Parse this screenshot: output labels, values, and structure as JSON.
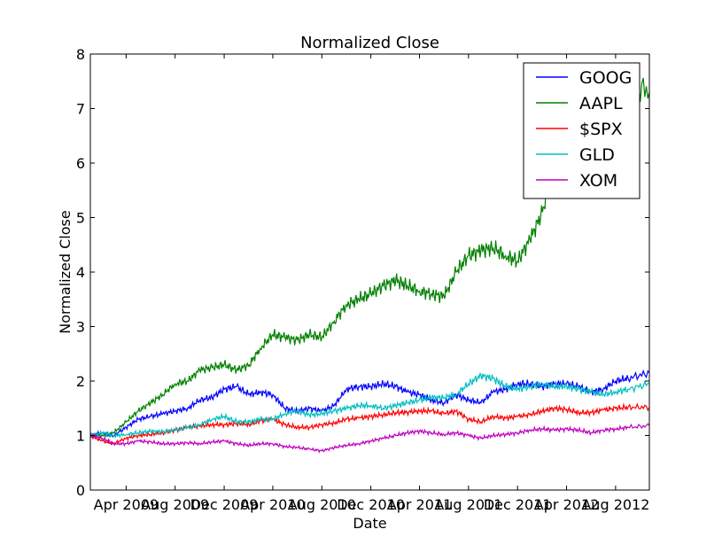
{
  "chart_data": {
    "type": "line",
    "title": "Normalized Close",
    "xlabel": "Date",
    "ylabel": "Normalized Close",
    "xlim": [
      "2009-01-02",
      "2012-10-24"
    ],
    "ylim": [
      0,
      8
    ],
    "x_ticks": [
      "2009-04-01",
      "2009-08-01",
      "2009-12-01",
      "2010-04-01",
      "2010-08-01",
      "2010-12-01",
      "2011-04-01",
      "2011-08-01",
      "2011-12-01",
      "2012-04-01",
      "2012-08-01"
    ],
    "x_tick_labels": [
      "Apr 2009",
      "Aug 2009",
      "Dec 2009",
      "Apr 2010",
      "Aug 2010",
      "Dec 2010",
      "Apr 2011",
      "Aug 2011",
      "Dec 2011",
      "Apr 2012",
      "Aug 2012"
    ],
    "y_ticks": [
      0,
      1,
      2,
      3,
      4,
      5,
      6,
      7,
      8
    ],
    "y_tick_labels": [
      "0",
      "1",
      "2",
      "3",
      "4",
      "5",
      "6",
      "7",
      "8"
    ],
    "grid": false,
    "legend_position": "top-right",
    "x": [
      "2009-01-02",
      "2009-02-01",
      "2009-03-01",
      "2009-04-01",
      "2009-05-01",
      "2009-06-01",
      "2009-07-01",
      "2009-08-01",
      "2009-09-01",
      "2009-10-01",
      "2009-11-01",
      "2009-12-01",
      "2010-01-01",
      "2010-02-01",
      "2010-03-01",
      "2010-04-01",
      "2010-05-01",
      "2010-06-01",
      "2010-07-01",
      "2010-08-01",
      "2010-09-01",
      "2010-10-01",
      "2010-11-01",
      "2010-12-01",
      "2011-01-01",
      "2011-02-01",
      "2011-03-01",
      "2011-04-01",
      "2011-05-01",
      "2011-06-01",
      "2011-07-01",
      "2011-08-01",
      "2011-09-01",
      "2011-10-01",
      "2011-11-01",
      "2011-12-01",
      "2012-01-01",
      "2012-02-01",
      "2012-03-01",
      "2012-04-01",
      "2012-05-01",
      "2012-06-01",
      "2012-07-01",
      "2012-08-01",
      "2012-09-01",
      "2012-10-24"
    ],
    "series": [
      {
        "name": "GOOG",
        "color": "#0000ff",
        "values": [
          1.0,
          1.05,
          1.0,
          1.15,
          1.3,
          1.35,
          1.4,
          1.45,
          1.5,
          1.65,
          1.7,
          1.85,
          1.9,
          1.75,
          1.8,
          1.75,
          1.5,
          1.45,
          1.5,
          1.45,
          1.55,
          1.85,
          1.9,
          1.9,
          1.95,
          1.9,
          1.8,
          1.75,
          1.65,
          1.6,
          1.75,
          1.65,
          1.6,
          1.8,
          1.85,
          1.95,
          1.95,
          1.9,
          1.95,
          1.95,
          1.9,
          1.8,
          1.85,
          2.0,
          2.05,
          2.15
        ]
      },
      {
        "name": "AAPL",
        "color": "#008000",
        "values": [
          1.0,
          1.0,
          1.05,
          1.25,
          1.45,
          1.6,
          1.75,
          1.95,
          2.0,
          2.2,
          2.25,
          2.3,
          2.2,
          2.3,
          2.6,
          2.85,
          2.8,
          2.75,
          2.85,
          2.8,
          3.1,
          3.4,
          3.5,
          3.6,
          3.75,
          3.85,
          3.75,
          3.65,
          3.6,
          3.55,
          4.0,
          4.3,
          4.4,
          4.45,
          4.3,
          4.2,
          4.6,
          5.1,
          6.0,
          6.5,
          6.2,
          6.3,
          6.7,
          7.3,
          7.5,
          7.3
        ]
      },
      {
        "name": "$SPX",
        "color": "#ff0000",
        "values": [
          1.0,
          0.9,
          0.85,
          0.95,
          1.0,
          1.02,
          1.05,
          1.1,
          1.15,
          1.17,
          1.2,
          1.2,
          1.22,
          1.2,
          1.27,
          1.3,
          1.2,
          1.15,
          1.15,
          1.2,
          1.23,
          1.3,
          1.32,
          1.35,
          1.38,
          1.42,
          1.43,
          1.45,
          1.45,
          1.4,
          1.45,
          1.3,
          1.25,
          1.35,
          1.32,
          1.35,
          1.38,
          1.45,
          1.5,
          1.48,
          1.42,
          1.42,
          1.47,
          1.5,
          1.52,
          1.52
        ]
      },
      {
        "name": "GLD",
        "color": "#00bfbf",
        "values": [
          1.0,
          1.05,
          1.0,
          1.02,
          1.05,
          1.08,
          1.07,
          1.1,
          1.15,
          1.2,
          1.3,
          1.35,
          1.25,
          1.25,
          1.3,
          1.3,
          1.4,
          1.45,
          1.38,
          1.4,
          1.45,
          1.5,
          1.55,
          1.55,
          1.5,
          1.55,
          1.6,
          1.65,
          1.7,
          1.7,
          1.75,
          1.95,
          2.1,
          2.05,
          1.9,
          1.85,
          1.9,
          1.95,
          1.9,
          1.9,
          1.85,
          1.8,
          1.75,
          1.8,
          1.85,
          1.95
        ]
      },
      {
        "name": "XOM",
        "color": "#bf00bf",
        "values": [
          1.0,
          0.95,
          0.85,
          0.85,
          0.9,
          0.88,
          0.85,
          0.85,
          0.87,
          0.85,
          0.88,
          0.9,
          0.85,
          0.82,
          0.85,
          0.85,
          0.8,
          0.78,
          0.75,
          0.72,
          0.78,
          0.82,
          0.85,
          0.9,
          0.95,
          1.0,
          1.05,
          1.08,
          1.05,
          1.02,
          1.05,
          1.0,
          0.95,
          1.0,
          1.02,
          1.05,
          1.1,
          1.12,
          1.1,
          1.12,
          1.1,
          1.05,
          1.1,
          1.12,
          1.15,
          1.18
        ]
      }
    ]
  }
}
